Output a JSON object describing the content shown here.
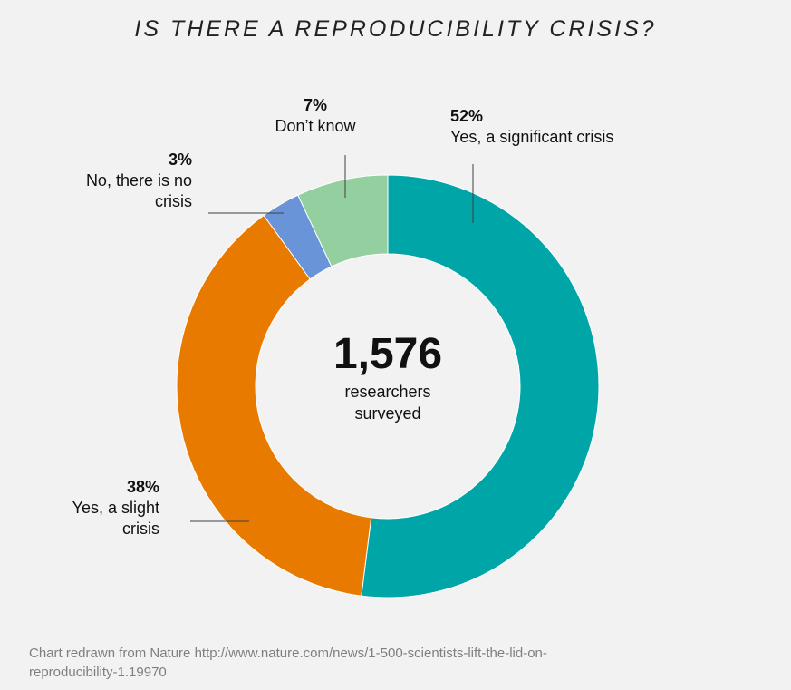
{
  "title": "IS THERE A REPRODUCIBILITY CRISIS?",
  "center": {
    "value": "1,576",
    "line1": "researchers",
    "line2": "surveyed"
  },
  "chart_data": {
    "type": "pie",
    "title": "IS THERE A REPRODUCIBILITY CRISIS?",
    "slices": [
      {
        "label": "Yes, a significant crisis",
        "value": 52,
        "pct_label": "52%",
        "color": "#00a5a8",
        "lines": [
          "Yes, a significant crisis"
        ]
      },
      {
        "label": "Yes, a slight crisis",
        "value": 38,
        "pct_label": "38%",
        "color": "#e87a00",
        "lines": [
          "Yes, a slight",
          "crisis"
        ]
      },
      {
        "label": "No, there is no crisis",
        "value": 3,
        "pct_label": "3%",
        "color": "#6a94d8",
        "lines": [
          "No, there is no",
          "crisis"
        ]
      },
      {
        "label": "Don’t know",
        "value": 7,
        "pct_label": "7%",
        "color": "#94cf9f",
        "lines": [
          "Don’t know"
        ]
      }
    ]
  },
  "footer": {
    "line1": "Chart redrawn from Nature http://www.nature.com/news/1-500-scientists-lift-the-lid-on-",
    "line2": "reproducibility-1.19970"
  }
}
